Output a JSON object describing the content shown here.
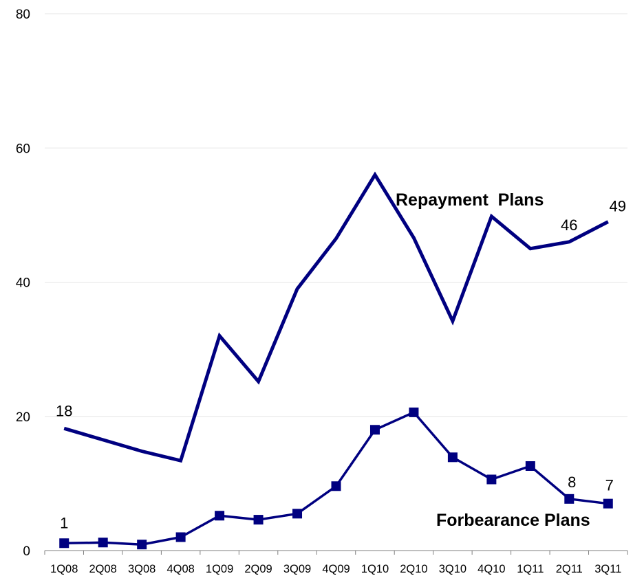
{
  "chart_data": {
    "type": "line",
    "categories": [
      "1Q08",
      "2Q08",
      "3Q08",
      "4Q08",
      "1Q09",
      "2Q09",
      "3Q09",
      "4Q09",
      "1Q10",
      "2Q10",
      "3Q10",
      "4Q10",
      "1Q11",
      "2Q11",
      "3Q11"
    ],
    "ylim": [
      0,
      80
    ],
    "yticks": [
      "0",
      "20",
      "40",
      "60",
      "80"
    ],
    "grid": true,
    "legend": "none",
    "series": [
      {
        "name": "Repayment  Plans",
        "values": [
          18.2,
          16.5,
          14.8,
          13.4,
          32.0,
          25.2,
          39.0,
          46.5,
          56.0,
          46.6,
          34.2,
          49.8,
          45.0,
          46.0,
          49.0
        ],
        "color": "#000080",
        "marker": "none",
        "labels": [
          {
            "index": 0,
            "text": "18"
          },
          {
            "index": 13,
            "text": "46"
          },
          {
            "index": 14,
            "text": "49"
          }
        ]
      },
      {
        "name": "Forbearance Plans",
        "values": [
          1.1,
          1.2,
          0.9,
          2.0,
          5.2,
          4.6,
          5.5,
          9.6,
          18.0,
          20.6,
          13.9,
          10.6,
          12.6,
          7.7,
          7.0
        ],
        "color": "#000080",
        "marker": "square",
        "labels": [
          {
            "index": 0,
            "text": "1"
          },
          {
            "index": 13,
            "text": "8"
          },
          {
            "index": 14,
            "text": "7"
          }
        ]
      }
    ]
  }
}
